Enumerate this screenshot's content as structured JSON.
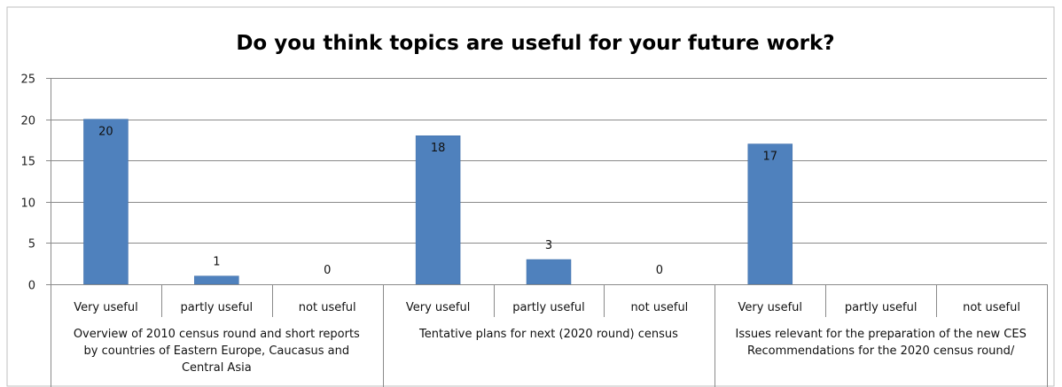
{
  "chart_data": {
    "type": "bar",
    "title": "Do you think topics are useful for your future work?",
    "xlabel": "",
    "ylabel": "",
    "ylim": [
      0,
      25
    ],
    "yticks": [
      0,
      5,
      10,
      15,
      20,
      25
    ],
    "grid": true,
    "legend": "none",
    "bar_color": "#4f81bd",
    "groups": [
      {
        "label_lines": [
          "Overview of 2010 census round and short reports",
          "by countries of Eastern Europe, Caucasus and",
          "Central Asia"
        ],
        "categories": [
          "Very useful",
          "partly useful",
          "not useful"
        ],
        "values": [
          20,
          1,
          0
        ],
        "labels": [
          "20",
          "1",
          "0"
        ]
      },
      {
        "label_lines": [
          "Tentative plans for next (2020 round) census"
        ],
        "categories": [
          "Very useful",
          "partly useful",
          "not useful"
        ],
        "values": [
          18,
          3,
          0
        ],
        "labels": [
          "18",
          "3",
          "0"
        ]
      },
      {
        "label_lines": [
          "Issues relevant for the preparation of the new CES",
          "Recommendations for the 2020 census round/"
        ],
        "categories": [
          "Very useful",
          "partly useful",
          "not useful"
        ],
        "values": [
          17,
          null,
          null
        ],
        "labels": [
          "17",
          "",
          ""
        ]
      }
    ]
  }
}
